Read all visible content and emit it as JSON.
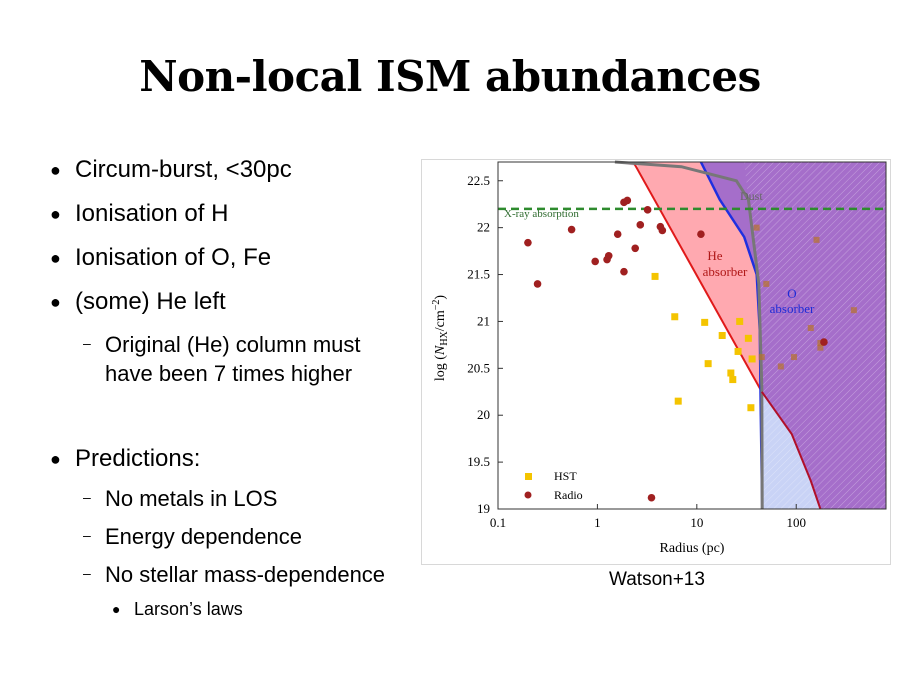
{
  "slide": {
    "title": "Non-local ISM abundances",
    "bullets": [
      "Circum-burst, <30pc",
      "Ionisation of H",
      "Ionisation of O, Fe",
      "(some) He left"
    ],
    "sub_bullet_1a": "Original (He) column must",
    "sub_bullet_1b": "have been 7 times higher",
    "predictions": "Predictions:",
    "prediction_items": [
      "No metals in LOS",
      "Energy dependence",
      "No stellar mass-dependence"
    ],
    "sub_sub_bullet": "Larson’s laws",
    "caption": "Watson+13"
  },
  "chart_data": {
    "type": "scatter",
    "xlabel": "Radius (pc)",
    "ylabel": "log (N_HX/cm^-2)",
    "x_scale": "log",
    "xlim": [
      0.1,
      800
    ],
    "ylim": [
      19,
      22.7
    ],
    "x_ticks": [
      "0.1",
      "1",
      "10",
      "100"
    ],
    "y_ticks": [
      "19",
      "19.5",
      "20",
      "20.5",
      "21",
      "21.5",
      "22",
      "22.5"
    ],
    "legend": [
      "HST",
      "Radio"
    ],
    "legend_position": "bottom-left",
    "annotations": {
      "xray": "X-ray absorption",
      "dust": "Dust",
      "he_1": "He",
      "he_2": "absorber",
      "o_1": "O",
      "o_2": "absorber"
    },
    "xray_absorption_level": 22.2,
    "regions": {
      "he_absorber_color": "#ff9aa2",
      "o_absorber_color": "#9b5ec4",
      "dust_line_color": "#777777"
    },
    "series": [
      {
        "name": "HST",
        "color": "#f4c400",
        "points": [
          [
            3.8,
            21.48
          ],
          [
            6,
            21.05
          ],
          [
            12,
            20.99
          ],
          [
            18,
            20.85
          ],
          [
            27,
            21.0
          ],
          [
            33,
            20.82
          ],
          [
            26,
            20.68
          ],
          [
            36,
            20.6
          ],
          [
            13,
            20.55
          ],
          [
            22,
            20.45
          ],
          [
            23,
            20.38
          ],
          [
            6.5,
            20.15
          ],
          [
            35,
            20.08
          ]
        ]
      },
      {
        "name": "Radio",
        "color": "#a02020",
        "points": [
          [
            0.2,
            21.84
          ],
          [
            0.25,
            21.4
          ],
          [
            0.55,
            21.98
          ],
          [
            0.95,
            21.64
          ],
          [
            1.25,
            21.66
          ],
          [
            1.3,
            21.7
          ],
          [
            1.6,
            21.93
          ],
          [
            1.85,
            21.53
          ],
          [
            1.85,
            22.27
          ],
          [
            2.0,
            22.29
          ],
          [
            2.4,
            21.78
          ],
          [
            2.7,
            22.03
          ],
          [
            3.2,
            22.19
          ],
          [
            4.3,
            22.01
          ],
          [
            4.5,
            21.97
          ],
          [
            11,
            21.93
          ],
          [
            3.5,
            19.12
          ],
          [
            190,
            20.78
          ]
        ]
      }
    ],
    "background_points": [
      [
        40,
        22.0
      ],
      [
        160,
        21.87
      ],
      [
        50,
        21.4
      ],
      [
        140,
        20.93
      ],
      [
        380,
        21.12
      ],
      [
        175,
        20.77
      ],
      [
        175,
        20.72
      ],
      [
        45,
        20.62
      ],
      [
        95,
        20.62
      ],
      [
        70,
        20.52
      ]
    ]
  }
}
